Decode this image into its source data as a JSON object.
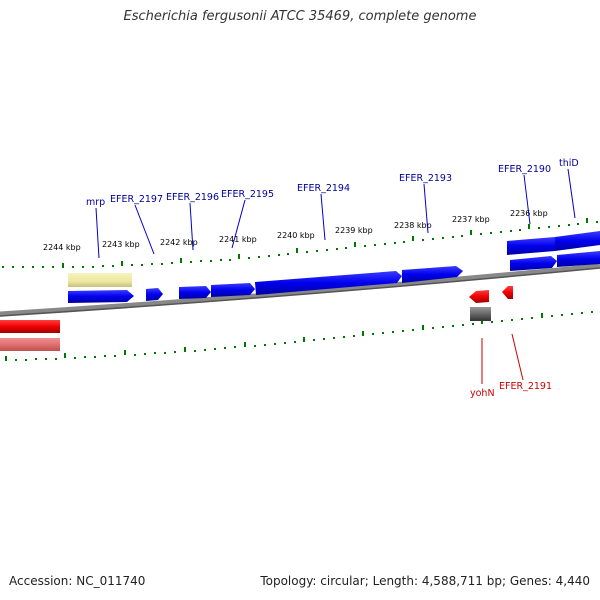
{
  "title": "Escherichia fergusonii ATCC 35469, complete genome",
  "footer": {
    "accession_label": "Accession:",
    "accession": "NC_011740",
    "topology_label": "Topology:",
    "topology": "circular",
    "length_label": "Length:",
    "length": "4,588,711 bp",
    "genes_label": "Genes:",
    "genes": "4,440"
  },
  "ticks": [
    "2244 kbp",
    "2243 kbp",
    "2242 kbp",
    "2241 kbp",
    "2240 kbp",
    "2239 kbp",
    "2238 kbp",
    "2237 kbp",
    "2236 kbp"
  ],
  "genes_top": [
    "mrp",
    "EFER_2197",
    "EFER_2196",
    "EFER_2195",
    "EFER_2194",
    "EFER_2193",
    "EFER_2190",
    "thiD"
  ],
  "genes_bottom": [
    "yohN",
    "EFER_2191"
  ],
  "colors": {
    "forward_gene": "#0000ee",
    "reverse_gene": "#ee0000",
    "rna_gene": "#eee8a0",
    "pseudo_gene": "#666666",
    "backbone": "#888888",
    "tick": "#007700",
    "label_forward": "#000099",
    "label_reverse": "#cc0000"
  }
}
